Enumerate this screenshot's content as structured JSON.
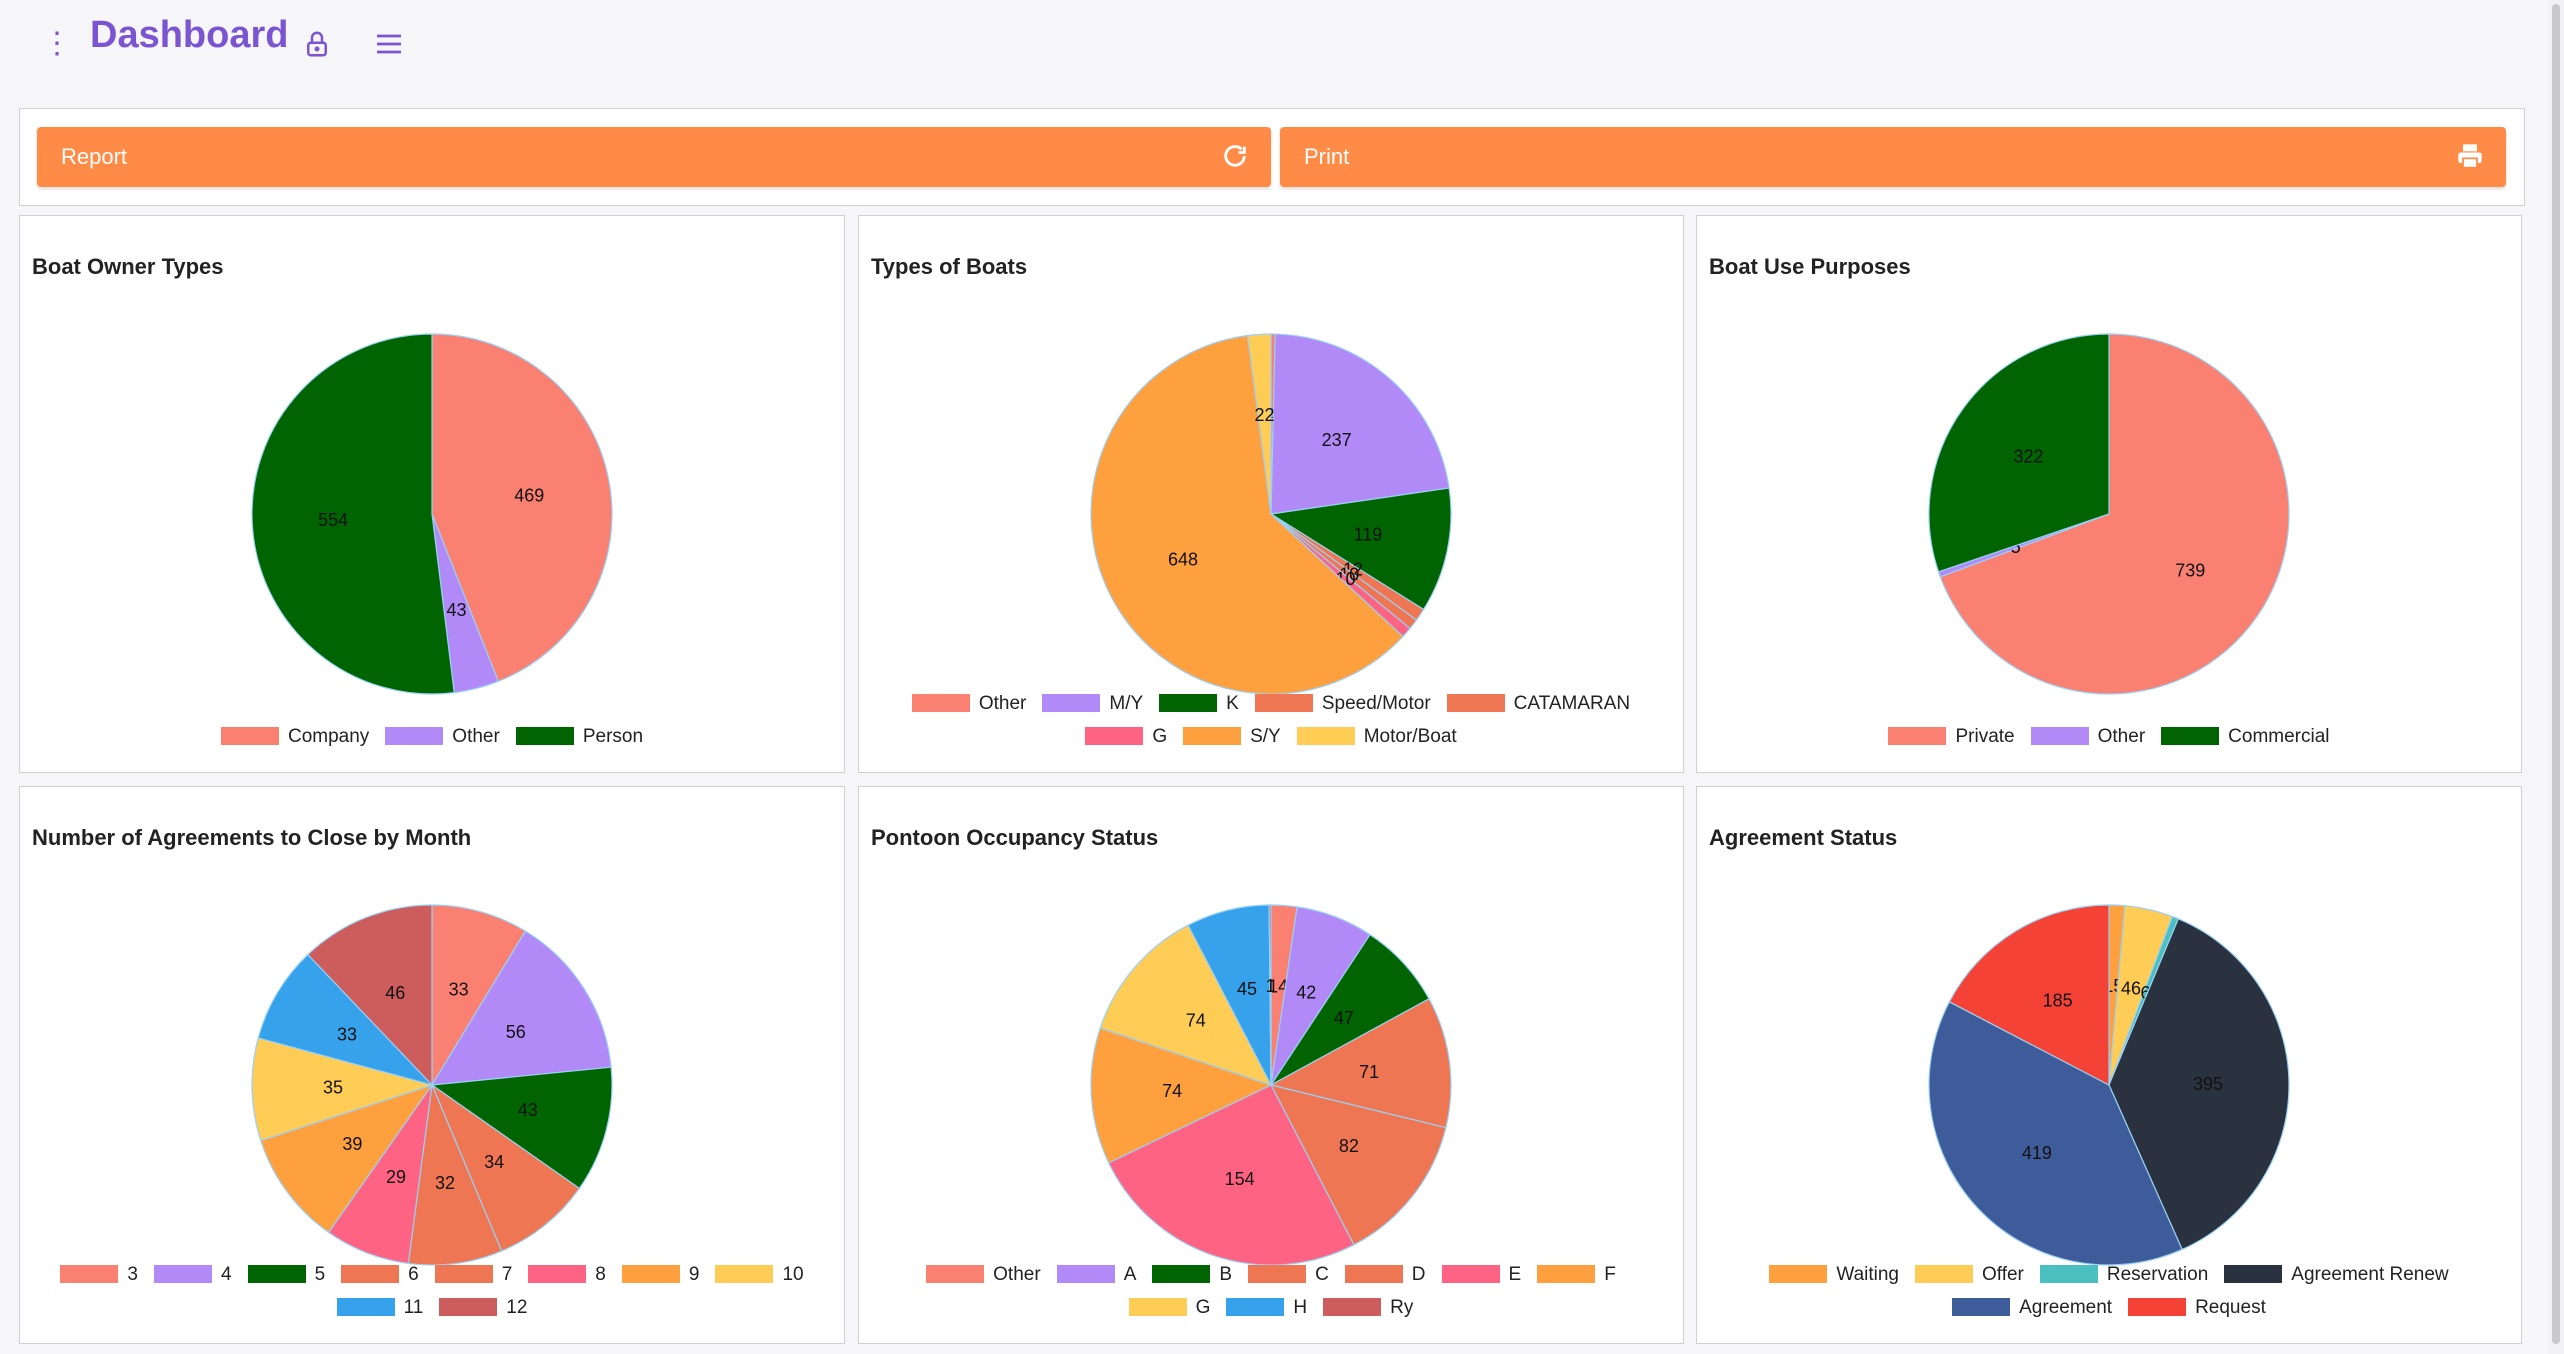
{
  "app": {
    "title": "Dashboard"
  },
  "icons": {
    "kebab": "kebab-menu-icon",
    "lock": "lock-icon",
    "menu": "hamburger-menu-icon",
    "refresh": "refresh-icon",
    "print": "printer-icon"
  },
  "colors": {
    "accent": "#7b55d1",
    "button": "#ff8b47"
  },
  "actions": {
    "report_label": "Report",
    "print_label": "Print"
  },
  "charts": [
    {
      "title": "Boat Owner Types",
      "chart_data": {
        "type": "pie",
        "title": "Boat Owner Types",
        "slices": [
          {
            "label": "Company",
            "value": 469,
            "color": "#fa8072"
          },
          {
            "label": "Other",
            "value": 43,
            "color": "#b18af8"
          },
          {
            "label": "Person",
            "value": 554,
            "color": "#006400"
          }
        ]
      }
    },
    {
      "title": "Types of Boats",
      "chart_data": {
        "type": "pie",
        "title": "Types of Boats",
        "slices": [
          {
            "label": "Other",
            "value": 4,
            "color": "#fa8072"
          },
          {
            "label": "M/Y",
            "value": 237,
            "color": "#b18af8"
          },
          {
            "label": "K",
            "value": 119,
            "color": "#006400"
          },
          {
            "label": "Speed/Motor",
            "value": 12,
            "color": "#ef7653"
          },
          {
            "label": "CATAMARAN",
            "value": 10,
            "color": "#ef7653"
          },
          {
            "label": "G",
            "value": 10,
            "color": "#ff6384"
          },
          {
            "label": "S/Y",
            "value": 648,
            "color": "#ffa03f"
          },
          {
            "label": "Motor/Boat",
            "value": 22,
            "color": "#ffcd56"
          }
        ]
      }
    },
    {
      "title": "Boat Use Purposes",
      "chart_data": {
        "type": "pie",
        "title": "Boat Use Purposes",
        "slices": [
          {
            "label": "Private",
            "value": 739,
            "color": "#fa8072"
          },
          {
            "label": "Other",
            "value": 5,
            "color": "#b18af8"
          },
          {
            "label": "Commercial",
            "value": 322,
            "color": "#006400"
          }
        ]
      }
    },
    {
      "title": "Number of Agreements to Close by Month",
      "chart_data": {
        "type": "pie",
        "title": "Number of Agreements to Close by Month",
        "slices": [
          {
            "label": "3",
            "value": 33,
            "color": "#fa8072"
          },
          {
            "label": "4",
            "value": 56,
            "color": "#b18af8"
          },
          {
            "label": "5",
            "value": 43,
            "color": "#006400"
          },
          {
            "label": "6",
            "value": 34,
            "color": "#ef7653"
          },
          {
            "label": "7",
            "value": 32,
            "color": "#ef7653"
          },
          {
            "label": "8",
            "value": 29,
            "color": "#ff6384"
          },
          {
            "label": "9",
            "value": 39,
            "color": "#ffa03f"
          },
          {
            "label": "10",
            "value": 35,
            "color": "#ffcd56"
          },
          {
            "label": "11",
            "value": 33,
            "color": "#36a2eb"
          },
          {
            "label": "12",
            "value": 46,
            "color": "#cd5c5c"
          }
        ]
      }
    },
    {
      "title": "Pontoon Occupancy Status",
      "chart_data": {
        "type": "pie",
        "title": "Pontoon Occupancy Status",
        "slices": [
          {
            "label": "Other",
            "value": 14,
            "color": "#fa8072"
          },
          {
            "label": "A",
            "value": 42,
            "color": "#b18af8"
          },
          {
            "label": "B",
            "value": 47,
            "color": "#006400"
          },
          {
            "label": "C",
            "value": 71,
            "color": "#ef7653"
          },
          {
            "label": "D",
            "value": 82,
            "color": "#ef7653"
          },
          {
            "label": "E",
            "value": 154,
            "color": "#ff6384"
          },
          {
            "label": "F",
            "value": 74,
            "color": "#ffa03f"
          },
          {
            "label": "G",
            "value": 74,
            "color": "#ffcd56"
          },
          {
            "label": "H",
            "value": 45,
            "color": "#36a2eb"
          },
          {
            "label": "Ry",
            "value": 1,
            "color": "#cd5c5c"
          }
        ]
      }
    },
    {
      "title": "Agreement Status",
      "chart_data": {
        "type": "pie",
        "title": "Agreement Status",
        "slices": [
          {
            "label": "Waiting",
            "value": 15,
            "color": "#ffa03f"
          },
          {
            "label": "Offer",
            "value": 46,
            "color": "#ffcd56"
          },
          {
            "label": "Reservation",
            "value": 6,
            "color": "#4bc0c0"
          },
          {
            "label": "Agreement Renew",
            "value": 395,
            "color": "#2b323f"
          },
          {
            "label": "Agreement",
            "value": 419,
            "color": "#3e5c9a"
          },
          {
            "label": "Request",
            "value": 185,
            "color": "#f44336"
          }
        ]
      }
    }
  ]
}
